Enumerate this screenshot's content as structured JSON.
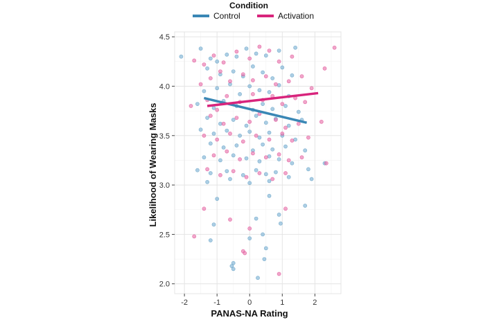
{
  "chart_data": {
    "type": "scatter",
    "title": "",
    "xlabel": "PANAS-NA Rating",
    "ylabel": "Likelihood of Wearing Masks",
    "xlim": [
      -2.3,
      2.8
    ],
    "ylim": [
      1.9,
      4.55
    ],
    "x_ticks": [
      -2,
      -1,
      0,
      1,
      2
    ],
    "y_ticks": [
      2.0,
      2.5,
      3.0,
      3.5,
      4.0,
      4.5
    ],
    "y_tick_labels": [
      "2.0",
      "2.5",
      "3.0",
      "3.5",
      "4.0",
      "4.5"
    ],
    "grid": true,
    "legend": {
      "title": "Condition",
      "placement": "top",
      "entries": [
        "Control",
        "Activation"
      ]
    },
    "series": [
      {
        "name": "Control",
        "color": "#3a87b5",
        "point_color": "#7fb3d5",
        "fit_line": {
          "x": [
            -1.4,
            1.75
          ],
          "y": [
            3.88,
            3.63
          ]
        },
        "points": [
          [
            -2.1,
            4.3
          ],
          [
            -1.5,
            4.38
          ],
          [
            -1.2,
            4.28
          ],
          [
            -1.0,
            4.25
          ],
          [
            -0.7,
            4.32
          ],
          [
            -0.4,
            4.3
          ],
          [
            -0.1,
            4.38
          ],
          [
            0.2,
            4.33
          ],
          [
            0.5,
            4.31
          ],
          [
            0.9,
            4.36
          ],
          [
            1.4,
            4.39
          ],
          [
            -1.3,
            4.18
          ],
          [
            -0.9,
            4.12
          ],
          [
            -0.5,
            4.15
          ],
          [
            -0.2,
            4.1
          ],
          [
            0.1,
            4.2
          ],
          [
            0.4,
            4.14
          ],
          [
            0.7,
            4.08
          ],
          [
            1.0,
            4.19
          ],
          [
            1.3,
            4.11
          ],
          [
            -1.4,
            3.95
          ],
          [
            -1.0,
            3.98
          ],
          [
            -0.6,
            4.02
          ],
          [
            -0.3,
            3.92
          ],
          [
            0.0,
            4.0
          ],
          [
            0.3,
            3.96
          ],
          [
            0.6,
            3.94
          ],
          [
            0.9,
            4.01
          ],
          [
            1.2,
            3.9
          ],
          [
            -1.6,
            3.82
          ],
          [
            -1.1,
            3.78
          ],
          [
            -0.8,
            3.85
          ],
          [
            -0.4,
            3.8
          ],
          [
            0.1,
            3.76
          ],
          [
            0.4,
            3.82
          ],
          [
            0.7,
            3.77
          ],
          [
            1.1,
            3.8
          ],
          [
            1.5,
            3.74
          ],
          [
            -1.3,
            3.68
          ],
          [
            -0.9,
            3.62
          ],
          [
            -0.5,
            3.66
          ],
          [
            -0.1,
            3.6
          ],
          [
            0.2,
            3.7
          ],
          [
            0.5,
            3.63
          ],
          [
            0.8,
            3.67
          ],
          [
            1.2,
            3.6
          ],
          [
            1.6,
            3.66
          ],
          [
            -1.5,
            3.56
          ],
          [
            -1.1,
            3.52
          ],
          [
            -0.7,
            3.55
          ],
          [
            -0.3,
            3.5
          ],
          [
            0.0,
            3.54
          ],
          [
            0.3,
            3.48
          ],
          [
            0.6,
            3.53
          ],
          [
            1.0,
            3.5
          ],
          [
            1.4,
            3.46
          ],
          [
            -1.2,
            3.42
          ],
          [
            -0.8,
            3.38
          ],
          [
            -0.4,
            3.4
          ],
          [
            0.1,
            3.35
          ],
          [
            0.4,
            3.41
          ],
          [
            0.7,
            3.36
          ],
          [
            1.1,
            3.39
          ],
          [
            1.7,
            3.35
          ],
          [
            -1.4,
            3.28
          ],
          [
            -0.9,
            3.25
          ],
          [
            -0.5,
            3.3
          ],
          [
            -0.1,
            3.27
          ],
          [
            0.3,
            3.24
          ],
          [
            0.6,
            3.29
          ],
          [
            0.9,
            3.26
          ],
          [
            1.3,
            3.22
          ],
          [
            1.8,
            3.16
          ],
          [
            -1.6,
            3.15
          ],
          [
            -1.2,
            3.12
          ],
          [
            -0.7,
            3.14
          ],
          [
            -0.2,
            3.1
          ],
          [
            0.2,
            3.15
          ],
          [
            0.5,
            3.11
          ],
          [
            0.8,
            3.13
          ],
          [
            1.2,
            3.08
          ],
          [
            1.9,
            3.06
          ],
          [
            -1.3,
            3.03
          ],
          [
            -0.6,
            3.06
          ],
          [
            0.0,
            3.02
          ],
          [
            0.6,
            3.04
          ],
          [
            2.3,
            3.22
          ],
          [
            -1.0,
            2.86
          ],
          [
            0.6,
            2.89
          ],
          [
            1.7,
            2.79
          ],
          [
            -1.1,
            2.6
          ],
          [
            0.2,
            2.66
          ],
          [
            0.9,
            2.7
          ],
          [
            0.95,
            2.61
          ],
          [
            -1.2,
            2.44
          ],
          [
            0.0,
            2.46
          ],
          [
            0.4,
            2.5
          ],
          [
            0.5,
            2.36
          ],
          [
            0.45,
            2.25
          ],
          [
            -0.5,
            2.21
          ],
          [
            -0.55,
            2.18
          ],
          [
            -0.5,
            2.15
          ],
          [
            0.25,
            2.06
          ]
        ]
      },
      {
        "name": "Activation",
        "color": "#d8247c",
        "point_color": "#e876ad",
        "fit_line": {
          "x": [
            -1.3,
            2.1
          ],
          "y": [
            3.8,
            3.93
          ]
        },
        "points": [
          [
            -1.7,
            4.26
          ],
          [
            -1.4,
            4.22
          ],
          [
            -1.1,
            4.31
          ],
          [
            -0.8,
            4.24
          ],
          [
            -0.4,
            4.35
          ],
          [
            0.0,
            4.28
          ],
          [
            0.3,
            4.4
          ],
          [
            0.6,
            4.36
          ],
          [
            0.9,
            4.25
          ],
          [
            1.3,
            4.3
          ],
          [
            2.3,
            4.18
          ],
          [
            2.6,
            4.39
          ],
          [
            -1.5,
            4.02
          ],
          [
            -1.2,
            4.08
          ],
          [
            -0.9,
            4.15
          ],
          [
            -0.6,
            4.05
          ],
          [
            -0.2,
            4.12
          ],
          [
            0.1,
            4.06
          ],
          [
            0.5,
            4.1
          ],
          [
            0.8,
            4.02
          ],
          [
            1.2,
            4.05
          ],
          [
            1.6,
            4.1
          ],
          [
            1.9,
            3.98
          ],
          [
            -1.8,
            3.8
          ],
          [
            -1.3,
            3.86
          ],
          [
            -1.0,
            3.76
          ],
          [
            -0.7,
            3.9
          ],
          [
            -0.3,
            3.84
          ],
          [
            0.1,
            3.92
          ],
          [
            0.4,
            3.86
          ],
          [
            0.7,
            3.9
          ],
          [
            1.0,
            3.82
          ],
          [
            1.4,
            3.88
          ],
          [
            1.7,
            3.84
          ],
          [
            -1.2,
            3.7
          ],
          [
            -0.8,
            3.62
          ],
          [
            -0.4,
            3.68
          ],
          [
            0.0,
            3.64
          ],
          [
            0.3,
            3.72
          ],
          [
            0.8,
            3.66
          ],
          [
            1.1,
            3.58
          ],
          [
            1.5,
            3.62
          ],
          [
            2.2,
            3.64
          ],
          [
            -1.4,
            3.5
          ],
          [
            -1.0,
            3.46
          ],
          [
            -0.6,
            3.52
          ],
          [
            -0.2,
            3.44
          ],
          [
            0.2,
            3.5
          ],
          [
            0.6,
            3.46
          ],
          [
            1.0,
            3.52
          ],
          [
            1.3,
            3.45
          ],
          [
            1.8,
            3.48
          ],
          [
            -1.1,
            3.3
          ],
          [
            -0.7,
            3.34
          ],
          [
            -0.3,
            3.26
          ],
          [
            0.1,
            3.32
          ],
          [
            0.5,
            3.28
          ],
          [
            0.9,
            3.31
          ],
          [
            1.2,
            3.25
          ],
          [
            1.6,
            3.28
          ],
          [
            -1.3,
            3.16
          ],
          [
            -0.9,
            3.1
          ],
          [
            -0.5,
            3.14
          ],
          [
            -0.1,
            3.08
          ],
          [
            0.3,
            3.12
          ],
          [
            0.7,
            3.06
          ],
          [
            1.1,
            3.12
          ],
          [
            2.35,
            3.22
          ],
          [
            -1.4,
            2.76
          ],
          [
            1.1,
            2.76
          ],
          [
            -0.6,
            2.65
          ],
          [
            0.0,
            2.56
          ],
          [
            -1.7,
            2.48
          ],
          [
            -0.2,
            2.33
          ],
          [
            -0.15,
            2.31
          ],
          [
            0.9,
            2.1
          ]
        ]
      }
    ]
  }
}
